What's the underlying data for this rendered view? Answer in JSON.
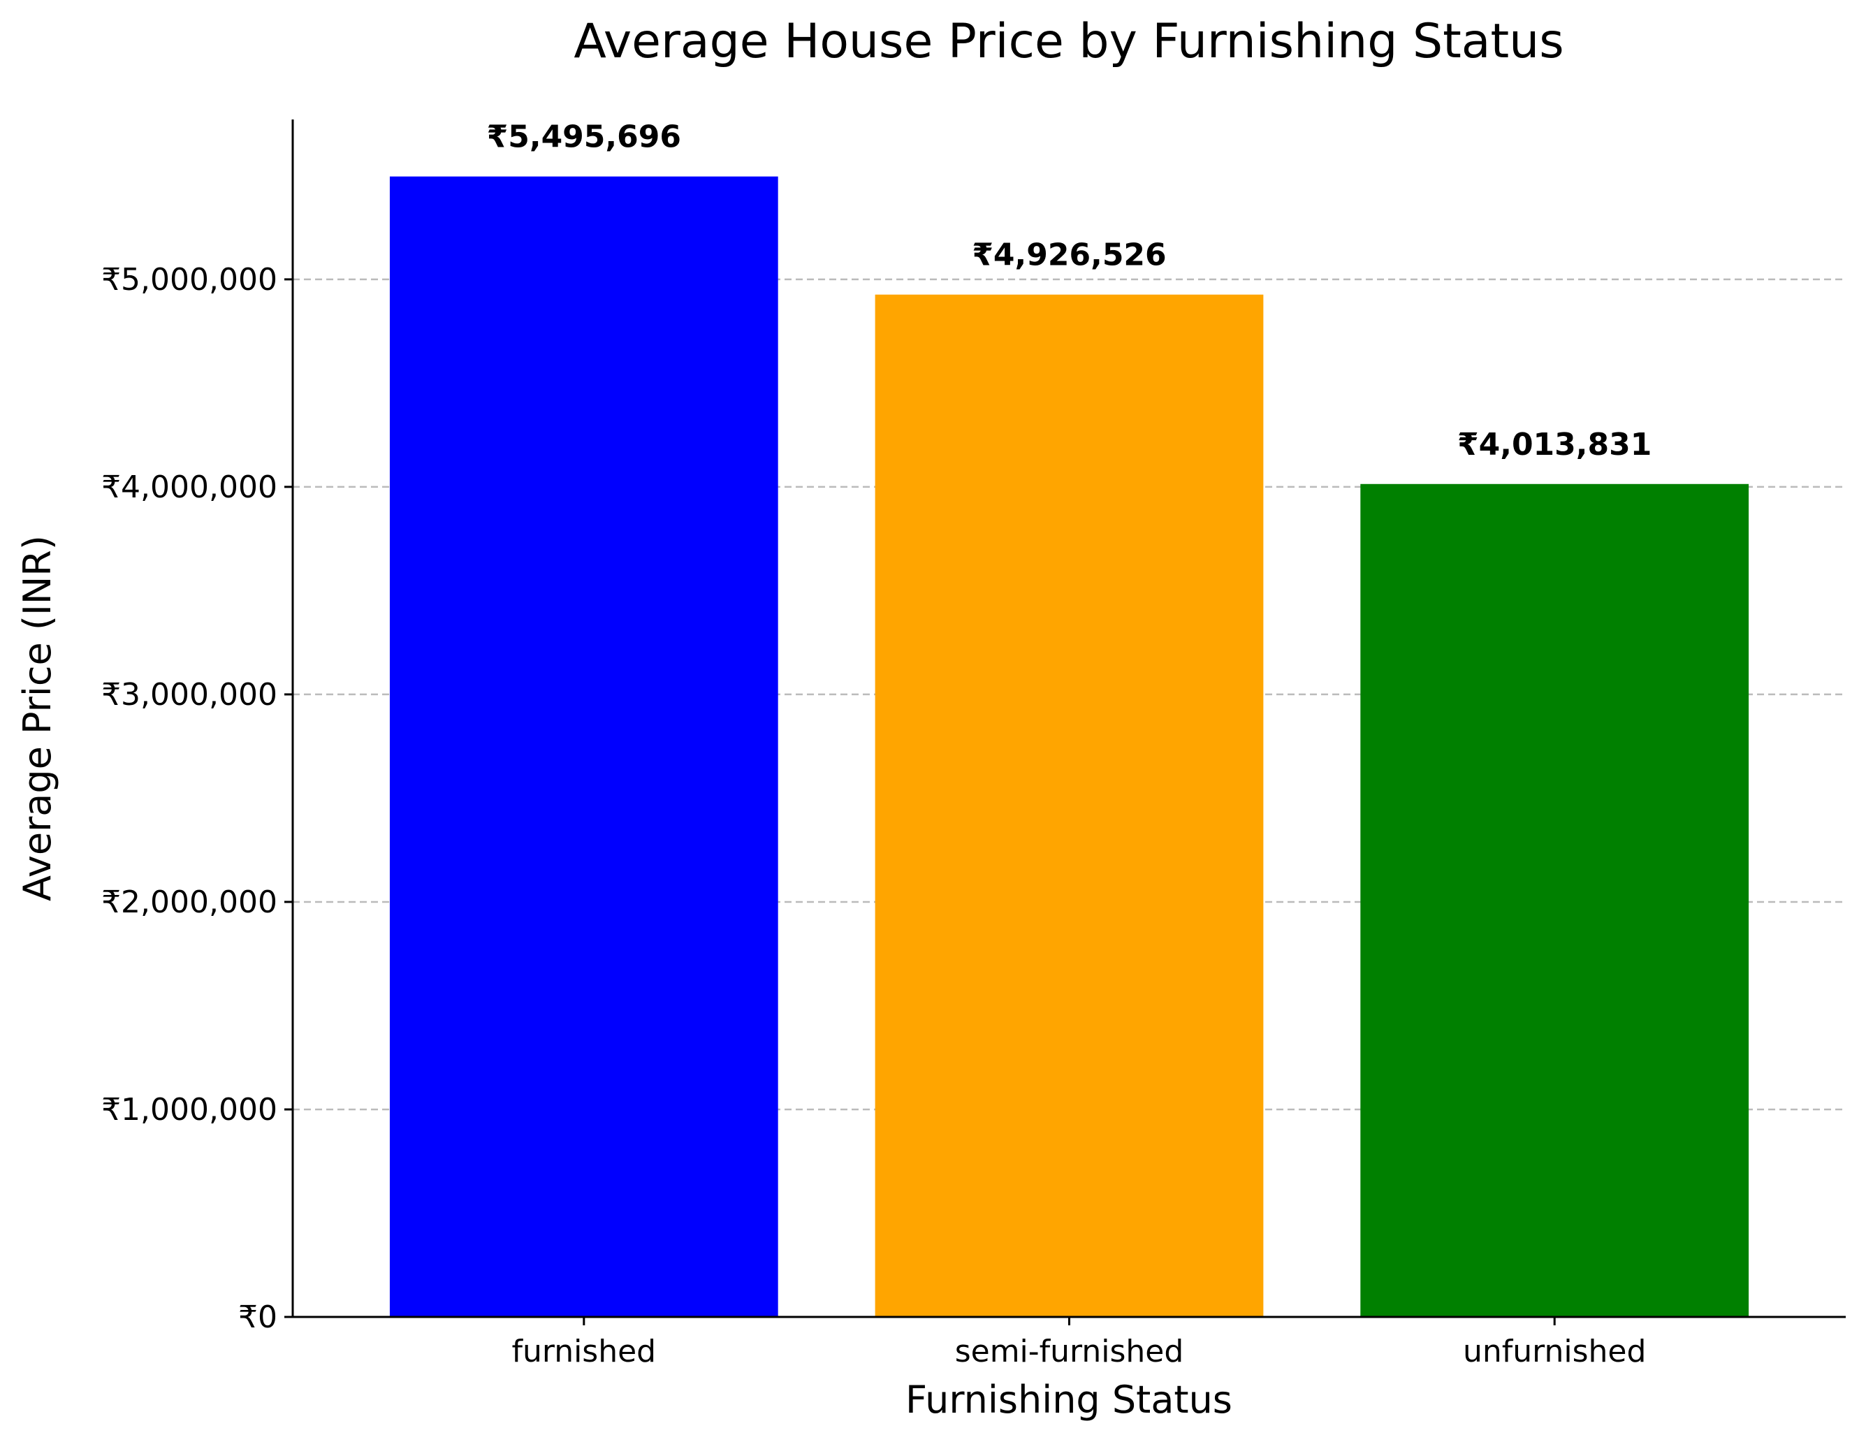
{
  "chart_data": {
    "type": "bar",
    "title": "Average House Price by Furnishing Status",
    "xlabel": "Furnishing Status",
    "ylabel": "Average Price (INR)",
    "categories": [
      "furnished",
      "semi-furnished",
      "unfurnished"
    ],
    "values": [
      5495696,
      4926526,
      4013831
    ],
    "value_labels": [
      "₹5,495,696",
      "₹4,926,526",
      "₹4,013,831"
    ],
    "colors": [
      "#0000ff",
      "#ffa500",
      "#008000"
    ],
    "ylim": [
      0,
      5770481
    ],
    "yticks": [
      0,
      1000000,
      2000000,
      3000000,
      4000000,
      5000000
    ],
    "ytick_labels": [
      "₹0",
      "₹1,000,000",
      "₹2,000,000",
      "₹3,000,000",
      "₹4,000,000",
      "₹5,000,000"
    ],
    "grid": "y-dashed",
    "legend": "none"
  }
}
